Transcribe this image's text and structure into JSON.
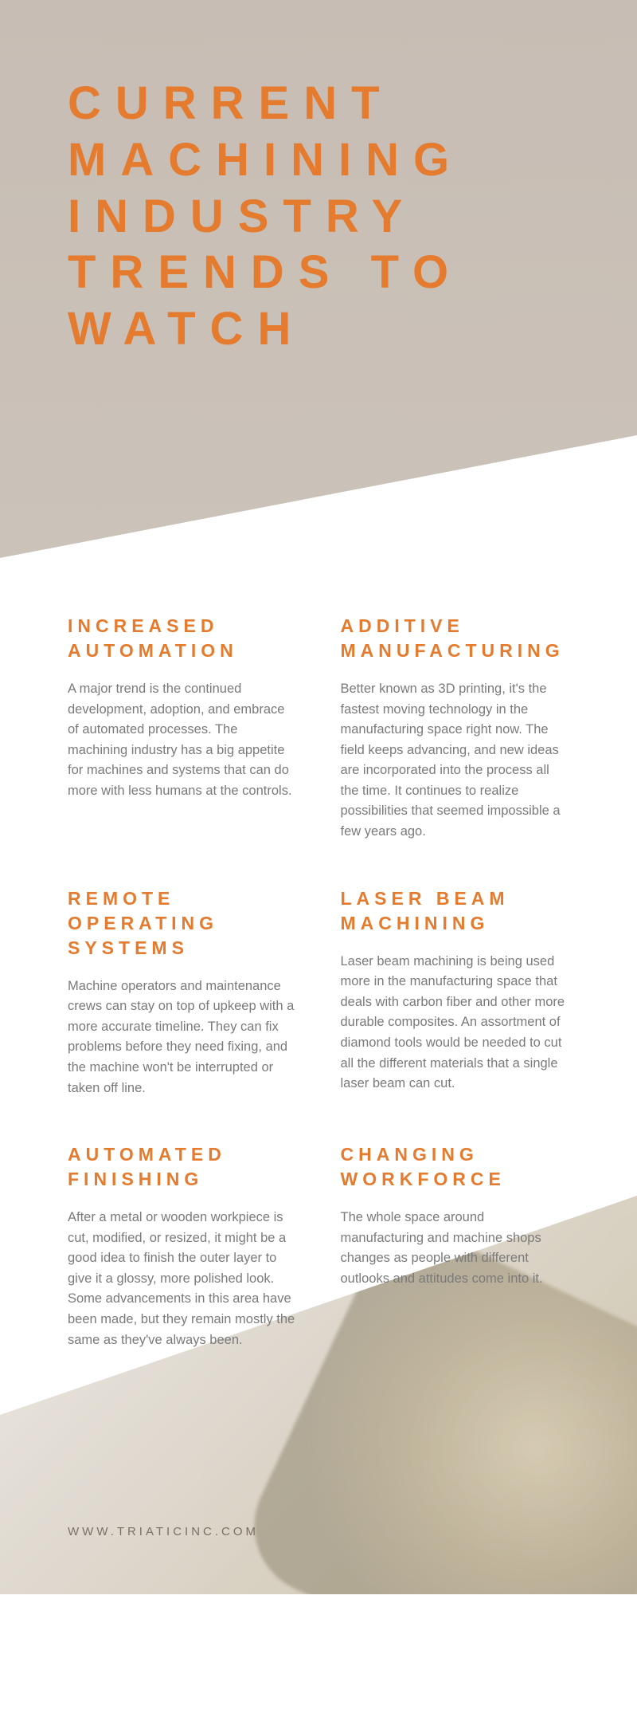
{
  "title": "CURRENT MACHINING INDUSTRY TRENDS TO WATCH",
  "colors": {
    "accent": "#e47b2e",
    "body_text": "#7a7a7a",
    "hero_bg": "#c5bab0",
    "footer_text": "#7a7065"
  },
  "typography": {
    "title_fontsize": 58,
    "title_letterspacing": 18,
    "section_title_fontsize": 23,
    "section_title_letterspacing": 6,
    "body_fontsize": 16.5
  },
  "trends": [
    {
      "title": "INCREASED AUTOMATION",
      "body": "A major trend is the continued development, adoption, and embrace of automated processes. The machining industry has a big appetite for machines and systems that can do more with less humans at the controls."
    },
    {
      "title": "ADDITIVE MANUFACTURING",
      "body": "Better known as 3D printing, it's the fastest moving technology in the manufacturing space right now. The field keeps advancing, and new ideas are incorporated into the process all the time. It continues to realize possibilities that seemed impossible a few years ago."
    },
    {
      "title": "REMOTE OPERATING SYSTEMS",
      "body": "Machine operators and maintenance crews can stay on top of upkeep with a more accurate timeline. They can fix problems before they need fixing, and the machine won't be interrupted or taken off line."
    },
    {
      "title": "LASER BEAM MACHINING",
      "body": "Laser beam machining is being used more in the manufacturing space that deals with carbon fiber and other more durable composites. An assortment of diamond tools would be needed to cut all the different materials that a single laser beam can cut."
    },
    {
      "title": "AUTOMATED FINISHING",
      "body": "After a metal or wooden workpiece is cut, modified, or resized, it might be a good idea to finish the outer layer to give it a glossy, more polished look. Some advancements in this area have been made, but they remain mostly the same as they've always been."
    },
    {
      "title": "CHANGING WORKFORCE",
      "body": "The whole space around manufacturing and machine shops changes as people with different outlooks and attitudes come into it."
    }
  ],
  "footer_url": "WWW.TRIATICINC.COM"
}
